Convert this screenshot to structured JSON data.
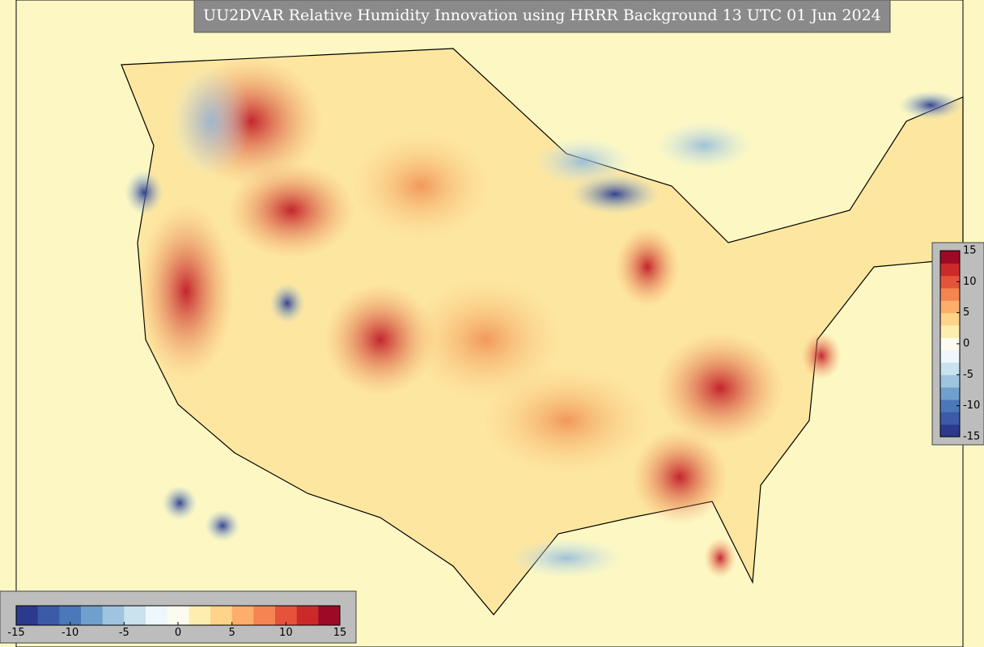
{
  "title": "UU2DVAR Relative Humidity Innovation using HRRR Background 13 UTC 01 Jun 2024",
  "colorbar": {
    "range": [
      -15,
      15
    ],
    "ticks": [
      -15,
      -10,
      -5,
      0,
      5,
      10,
      15
    ],
    "colors": [
      "#2b3a8c",
      "#3b5aa8",
      "#4a78b8",
      "#6f9fcc",
      "#9ec4e0",
      "#c8e2ee",
      "#eef7fb",
      "#fbfbf0",
      "#fdeeb0",
      "#fdd48a",
      "#fcae6a",
      "#f58452",
      "#e5533a",
      "#cc2a2a",
      "#9e0a26"
    ]
  }
}
